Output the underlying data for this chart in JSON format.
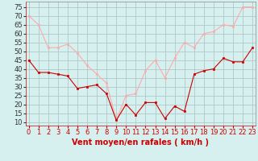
{
  "x": [
    0,
    1,
    2,
    3,
    4,
    5,
    6,
    7,
    8,
    9,
    10,
    11,
    12,
    13,
    14,
    15,
    16,
    17,
    18,
    19,
    20,
    21,
    22,
    23
  ],
  "wind_avg": [
    45,
    38,
    38,
    37,
    36,
    29,
    30,
    31,
    26,
    11,
    20,
    14,
    21,
    21,
    12,
    19,
    16,
    37,
    39,
    40,
    46,
    44,
    44,
    52
  ],
  "wind_gust": [
    70,
    65,
    52,
    52,
    54,
    49,
    42,
    37,
    32,
    11,
    25,
    26,
    39,
    45,
    35,
    46,
    55,
    52,
    60,
    61,
    65,
    64,
    75,
    75
  ],
  "xlabel": "Vent moyen/en rafales ( km/h )",
  "yticks": [
    10,
    15,
    20,
    25,
    30,
    35,
    40,
    45,
    50,
    55,
    60,
    65,
    70,
    75
  ],
  "xticks": [
    0,
    1,
    2,
    3,
    4,
    5,
    6,
    7,
    8,
    9,
    10,
    11,
    12,
    13,
    14,
    15,
    16,
    17,
    18,
    19,
    20,
    21,
    22,
    23
  ],
  "color_avg": "#cc0000",
  "color_gust": "#ffaaaa",
  "bg_color": "#d6f0f0",
  "grid_color": "#b0c8c8",
  "xlabel_color": "#cc0000",
  "xlabel_fontsize": 7,
  "tick_fontsize": 6,
  "ylim": [
    8,
    78
  ],
  "xlim": [
    -0.3,
    23.3
  ]
}
